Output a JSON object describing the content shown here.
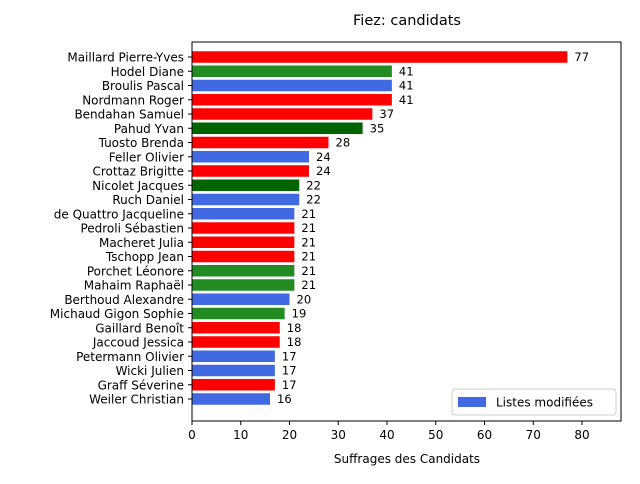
{
  "chart_data": {
    "type": "bar",
    "orientation": "horizontal",
    "title": "Fiez: candidats",
    "xlabel": "Suffrages des Candidats",
    "ylabel": "",
    "xlim": [
      0,
      88
    ],
    "xticks": [
      0,
      10,
      20,
      30,
      40,
      50,
      60,
      70,
      80
    ],
    "grid": false,
    "legend": {
      "placement": "lower-right",
      "label": "Listes modifiées",
      "color": "#4169e1"
    },
    "colors": {
      "red": "#ff0000",
      "green": "#228b22",
      "darkgreen": "#006400",
      "blue": "#4169e1"
    },
    "bars": [
      {
        "label": "Maillard Pierre-Yves",
        "value": 77,
        "color": "red"
      },
      {
        "label": "Hodel Diane",
        "value": 41,
        "color": "green"
      },
      {
        "label": "Broulis Pascal",
        "value": 41,
        "color": "blue"
      },
      {
        "label": "Nordmann Roger",
        "value": 41,
        "color": "red"
      },
      {
        "label": "Bendahan Samuel",
        "value": 37,
        "color": "red"
      },
      {
        "label": "Pahud Yvan",
        "value": 35,
        "color": "darkgreen"
      },
      {
        "label": "Tuosto Brenda",
        "value": 28,
        "color": "red"
      },
      {
        "label": "Feller Olivier",
        "value": 24,
        "color": "blue"
      },
      {
        "label": "Crottaz Brigitte",
        "value": 24,
        "color": "red"
      },
      {
        "label": "Nicolet Jacques",
        "value": 22,
        "color": "darkgreen"
      },
      {
        "label": "Ruch Daniel",
        "value": 22,
        "color": "blue"
      },
      {
        "label": "de Quattro Jacqueline",
        "value": 21,
        "color": "blue"
      },
      {
        "label": "Pedroli Sébastien",
        "value": 21,
        "color": "red"
      },
      {
        "label": "Macheret Julia",
        "value": 21,
        "color": "red"
      },
      {
        "label": "Tschopp Jean",
        "value": 21,
        "color": "red"
      },
      {
        "label": "Porchet Léonore",
        "value": 21,
        "color": "green"
      },
      {
        "label": "Mahaim Raphaël",
        "value": 21,
        "color": "green"
      },
      {
        "label": "Berthoud Alexandre",
        "value": 20,
        "color": "blue"
      },
      {
        "label": "Michaud Gigon Sophie",
        "value": 19,
        "color": "green"
      },
      {
        "label": "Gaillard Benoît",
        "value": 18,
        "color": "red"
      },
      {
        "label": "Jaccoud Jessica",
        "value": 18,
        "color": "red"
      },
      {
        "label": "Petermann Olivier",
        "value": 17,
        "color": "blue"
      },
      {
        "label": "Wicki Julien",
        "value": 17,
        "color": "blue"
      },
      {
        "label": "Graff Séverine",
        "value": 17,
        "color": "red"
      },
      {
        "label": "Weiler Christian",
        "value": 16,
        "color": "blue"
      }
    ]
  }
}
